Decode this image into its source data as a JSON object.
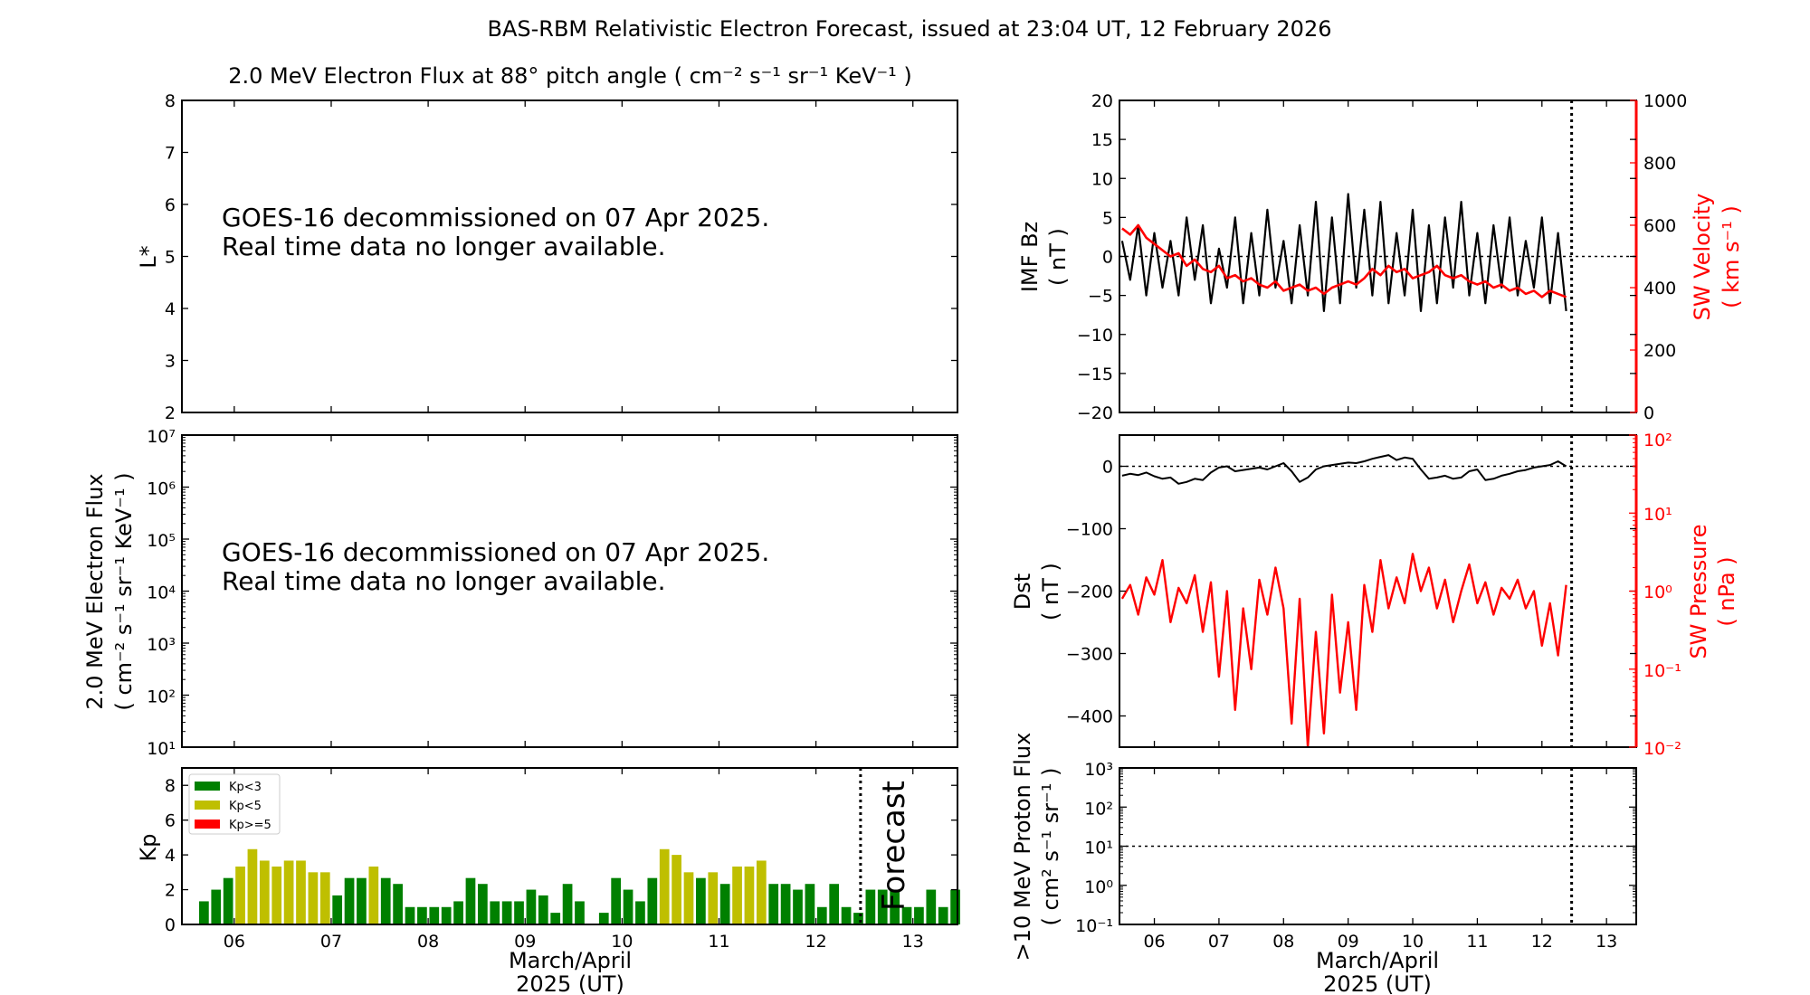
{
  "title": "BAS-RBM Relativistic Electron Forecast, issued at 23:04 UT, 12 February 2026",
  "colors": {
    "kp_low": "#008000",
    "kp_mid": "#bfbf00",
    "kp_high": "#ff0000",
    "solar_wind": "#ff0000",
    "primary": "#000000",
    "forecast_text": "#c8c8c8"
  },
  "xaxis": {
    "tick_labels": [
      "06",
      "07",
      "08",
      "09",
      "10",
      "11",
      "12",
      "13"
    ],
    "label_line1": "March/April",
    "label_line2": "2025 (UT)",
    "range_days": [
      5.46,
      13.46
    ],
    "forecast_start_day": 12.46
  },
  "chart_data": [
    {
      "id": "lstar",
      "type": "heatmap",
      "title": "2.0 MeV Electron Flux at 88° pitch angle ( cm⁻² s⁻¹ sr⁻¹ KeV⁻¹ )",
      "ylabel": "L*",
      "ylim": [
        2,
        8
      ],
      "yticks": [
        "2",
        "3",
        "4",
        "5",
        "6",
        "7",
        "8"
      ],
      "message_line1": "GOES-16 decommissioned on 07 Apr 2025.",
      "message_line2": "Real time data no longer available."
    },
    {
      "id": "flux",
      "type": "line",
      "ylabel_line1": "2.0 MeV Electron Flux",
      "ylabel_line2": "( cm⁻² s⁻¹ sr⁻¹ KeV⁻¹ )",
      "yscale": "log",
      "ylim": [
        10,
        10000000
      ],
      "yticks": [
        "10¹",
        "10²",
        "10³",
        "10⁴",
        "10⁵",
        "10⁶",
        "10⁷"
      ],
      "message_line1": "GOES-16 decommissioned on 07 Apr 2025.",
      "message_line2": "Real time data no longer available."
    },
    {
      "id": "kp",
      "type": "bar",
      "ylabel": "Kp",
      "ylim": [
        0,
        9
      ],
      "yticks": [
        "0",
        "2",
        "4",
        "6",
        "8"
      ],
      "forecast_label": "Forecast",
      "legend": {
        "placement": "top-left",
        "entries": [
          "Kp<3",
          "Kp<5",
          "Kp>=5"
        ]
      },
      "x_start_day": 5.6875,
      "bin_hours": 3,
      "values": [
        1.33,
        2,
        2.67,
        3.33,
        4.33,
        3.67,
        3.33,
        3.67,
        3.67,
        3,
        3,
        1.67,
        2.67,
        2.67,
        3.33,
        2.67,
        2.33,
        1,
        1,
        1,
        1,
        1.33,
        2.67,
        2.33,
        1.33,
        1.33,
        1.33,
        2,
        1.67,
        0.67,
        2.33,
        1.33,
        0,
        0.67,
        2.67,
        2,
        1.33,
        2.67,
        4.33,
        4,
        3,
        2.67,
        3,
        2.33,
        3.33,
        3.33,
        3.67,
        2.33,
        2.33,
        2,
        2.33,
        1,
        2.33,
        1,
        0.67,
        2,
        2,
        2,
        1,
        1,
        2,
        1,
        2
      ]
    },
    {
      "id": "imf",
      "type": "line",
      "ylabel_line1": "IMF Bz",
      "ylabel_line2": "( nT )",
      "ylim": [
        -20,
        20
      ],
      "yticks": [
        "−20",
        "−15",
        "−10",
        "−5",
        "0",
        "5",
        "10",
        "15",
        "20"
      ],
      "right_ylabel_line1": "SW Velocity",
      "right_ylabel_line2": "( km s⁻¹ )",
      "right_ylim": [
        0,
        1000
      ],
      "right_yticks": [
        "0",
        "200",
        "400",
        "600",
        "800",
        "1000"
      ],
      "x_start_day": 5.5,
      "step_hours": 3,
      "bz": [
        2,
        -3,
        4,
        -5,
        3,
        -4,
        2,
        -5,
        5,
        -3,
        4,
        -6,
        1,
        -4,
        5,
        -6,
        3,
        -5,
        6,
        -4,
        2,
        -6,
        4,
        -5,
        7,
        -7,
        5,
        -6,
        8,
        -4,
        6,
        -5,
        7,
        -6,
        3,
        -5,
        6,
        -7,
        4,
        -6,
        5,
        -4,
        7,
        -5,
        3,
        -6,
        4,
        -4,
        5,
        -5,
        2,
        -4,
        5,
        -6,
        3,
        -7
      ],
      "velocity": [
        590,
        570,
        600,
        560,
        540,
        520,
        500,
        510,
        470,
        490,
        460,
        450,
        470,
        430,
        440,
        420,
        430,
        410,
        400,
        420,
        390,
        400,
        410,
        390,
        400,
        380,
        400,
        410,
        420,
        410,
        430,
        460,
        440,
        470,
        450,
        460,
        430,
        440,
        450,
        470,
        440,
        430,
        440,
        420,
        410,
        420,
        400,
        410,
        390,
        400,
        380,
        390,
        370,
        390,
        380,
        370
      ]
    },
    {
      "id": "dst",
      "type": "line",
      "ylabel_line1": "Dst",
      "ylabel_line2": "( nT )",
      "ylim": [
        -450,
        50
      ],
      "yticks": [
        "−400",
        "−300",
        "−200",
        "−100",
        "0"
      ],
      "right_ylabel_line1": "SW Pressure",
      "right_ylabel_line2": "( nPa )",
      "right_yscale": "log",
      "right_ylim": [
        0.01,
        100
      ],
      "right_yticks": [
        "10⁻²",
        "10⁻¹",
        "10⁰",
        "10¹",
        "10²"
      ],
      "x_start_day": 5.5,
      "step_hours": 3,
      "dst": [
        -15,
        -12,
        -14,
        -10,
        -16,
        -20,
        -18,
        -28,
        -25,
        -20,
        -22,
        -10,
        -2,
        0,
        -8,
        -6,
        -4,
        -2,
        -5,
        0,
        5,
        -8,
        -25,
        -18,
        -5,
        0,
        2,
        4,
        6,
        5,
        8,
        12,
        15,
        18,
        10,
        14,
        12,
        -5,
        -20,
        -18,
        -15,
        -20,
        -18,
        -8,
        -5,
        -22,
        -20,
        -15,
        -12,
        -8,
        -6,
        -2,
        0,
        2,
        8,
        0
      ],
      "pressure": [
        0.8,
        1.2,
        0.5,
        1.5,
        0.9,
        2.5,
        0.4,
        1.1,
        0.7,
        1.6,
        0.3,
        1.3,
        0.08,
        1.0,
        0.03,
        0.6,
        0.1,
        1.4,
        0.5,
        2.0,
        0.6,
        0.02,
        0.8,
        0.01,
        0.3,
        0.015,
        0.9,
        0.05,
        0.4,
        0.03,
        1.2,
        0.3,
        2.5,
        0.6,
        1.5,
        0.7,
        3.0,
        1.0,
        2.0,
        0.6,
        1.4,
        0.4,
        1.0,
        2.2,
        0.7,
        1.3,
        0.5,
        1.1,
        0.8,
        1.4,
        0.6,
        1.0,
        0.2,
        0.7,
        0.15,
        1.2
      ]
    },
    {
      "id": "proton",
      "type": "line",
      "ylabel_line1": ">10 MeV Proton Flux",
      "ylabel_line2": "( cm² s⁻¹ sr⁻¹ )",
      "yscale": "log",
      "ylim": [
        0.1,
        1000
      ],
      "yticks": [
        "10⁻¹",
        "10⁰",
        "10¹",
        "10²",
        "10³"
      ],
      "threshold": 10
    }
  ]
}
